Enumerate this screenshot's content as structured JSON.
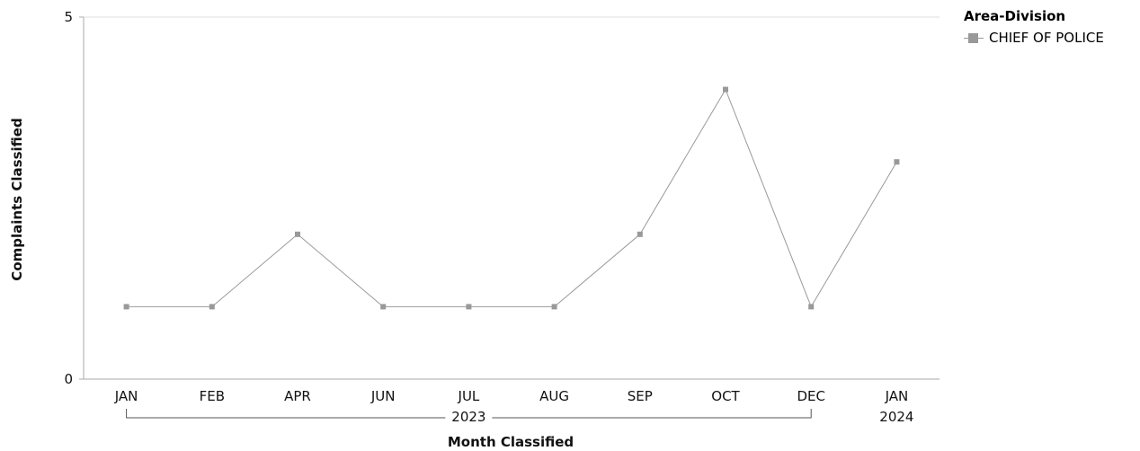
{
  "chart_data": {
    "type": "line",
    "categories": [
      "JAN",
      "FEB",
      "APR",
      "JUN",
      "JUL",
      "AUG",
      "SEP",
      "OCT",
      "DEC",
      "JAN"
    ],
    "year_groups": [
      {
        "label": "2023",
        "start": 0,
        "end": 8
      },
      {
        "label": "2024",
        "start": 9,
        "end": 9
      }
    ],
    "series": [
      {
        "name": "CHIEF OF POLICE",
        "values": [
          1,
          1,
          2,
          1,
          1,
          1,
          2,
          4,
          1,
          3
        ],
        "color": "#999999"
      }
    ],
    "ylim": [
      0,
      5
    ],
    "yticks": [
      "0",
      "5"
    ],
    "xlabel": "Month Classified",
    "ylabel": "Complaints Classified",
    "legend_title": "Area-Division",
    "legend_position": "top-right",
    "grid": false
  }
}
